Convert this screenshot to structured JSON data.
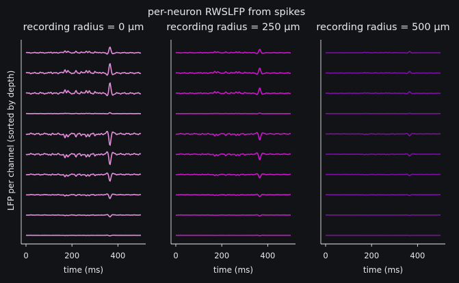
{
  "chart_data": {
    "type": "line",
    "title": "per-neuron RWSLFP from spikes",
    "ylabel": "LFP per channel (sorted by depth)",
    "panels": [
      {
        "title": "recording radius = 0 µm",
        "xlabel": "time (ms)",
        "color": "#e88ee0",
        "xlim": [
          0,
          500
        ],
        "xticks": [
          0,
          200,
          400
        ],
        "channels": [
          {
            "amplitude": 0.3
          },
          {
            "amplitude": 0.5
          },
          {
            "amplitude": 0.55
          },
          {
            "amplitude": 0.05
          },
          {
            "amplitude": -0.6
          },
          {
            "amplitude": -0.55
          },
          {
            "amplitude": -0.35
          },
          {
            "amplitude": -0.2
          },
          {
            "amplitude": -0.1
          },
          {
            "amplitude": -0.03
          }
        ]
      },
      {
        "title": "recording radius = 250 µm",
        "xlabel": "time (ms)",
        "color": "#c818c8",
        "xlim": [
          0,
          500
        ],
        "xticks": [
          0,
          200,
          400
        ],
        "channels": [
          {
            "amplitude": 0.18
          },
          {
            "amplitude": 0.26
          },
          {
            "amplitude": 0.28
          },
          {
            "amplitude": 0.03
          },
          {
            "amplitude": -0.32
          },
          {
            "amplitude": -0.3
          },
          {
            "amplitude": -0.18
          },
          {
            "amplitude": -0.1
          },
          {
            "amplitude": -0.05
          },
          {
            "amplitude": -0.02
          }
        ]
      },
      {
        "title": "recording radius = 500 µm",
        "xlabel": "time (ms)",
        "color": "#7e0ea8",
        "xlim": [
          0,
          500
        ],
        "xticks": [
          0,
          200,
          400
        ],
        "channels": [
          {
            "amplitude": 0.07
          },
          {
            "amplitude": 0.09
          },
          {
            "amplitude": 0.09
          },
          {
            "amplitude": 0.02
          },
          {
            "amplitude": -0.1
          },
          {
            "amplitude": -0.09
          },
          {
            "amplitude": -0.06
          },
          {
            "amplitude": -0.04
          },
          {
            "amplitude": -0.02
          },
          {
            "amplitude": -0.01
          }
        ]
      }
    ]
  }
}
